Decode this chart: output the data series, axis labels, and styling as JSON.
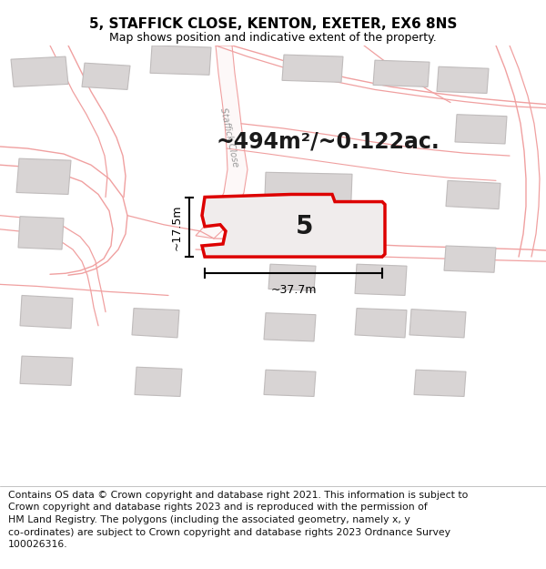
{
  "title": "5, STAFFICK CLOSE, KENTON, EXETER, EX6 8NS",
  "subtitle": "Map shows position and indicative extent of the property.",
  "footer_lines": [
    "Contains OS data © Crown copyright and database right 2021. This information is subject to",
    "Crown copyright and database rights 2023 and is reproduced with the permission of",
    "HM Land Registry. The polygons (including the associated geometry, namely x, y",
    "co-ordinates) are subject to Crown copyright and database rights 2023 Ordnance Survey",
    "100026316."
  ],
  "map_bg": "#ffffff",
  "road_color": "#f0a0a0",
  "road_fill": "#ffffff",
  "building_color": "#d8d4d4",
  "building_edge": "#c0bcbc",
  "highlight_color": "#dd0000",
  "highlight_fill": "#f0ecec",
  "area_text": "~494m²/~0.122ac.",
  "property_label": "5",
  "dim_width": "~37.7m",
  "dim_height": "~17.5m",
  "road_label": "Staffick Close",
  "title_fontsize": 11,
  "subtitle_fontsize": 9,
  "footer_fontsize": 7.8,
  "area_fontsize": 17,
  "label_fontsize": 20,
  "dim_fontsize": 9
}
